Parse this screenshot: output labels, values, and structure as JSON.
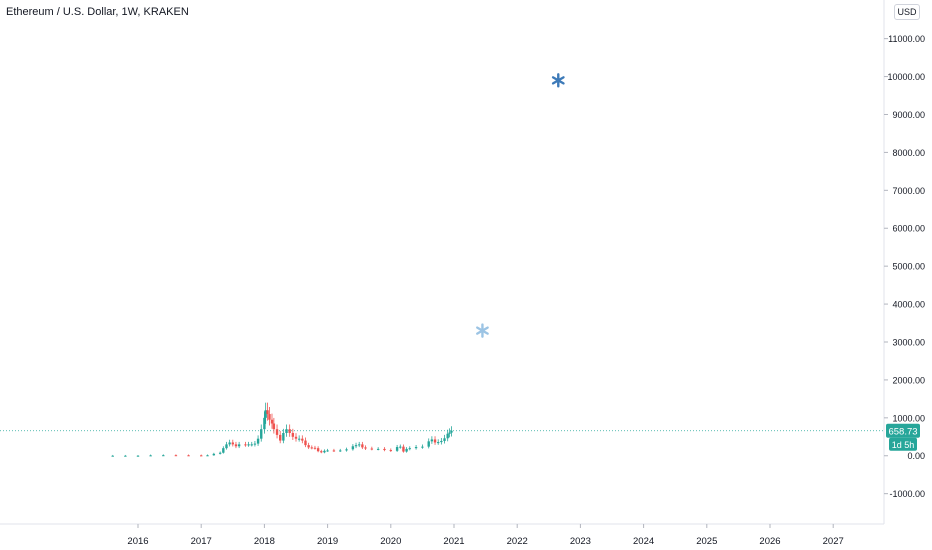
{
  "header": {
    "title": "Ethereum / U.S. Dollar, 1W, KRAKEN",
    "currency_button": "USD"
  },
  "price_badge": {
    "value": "658.73",
    "countdown": "1d 5h"
  },
  "colors": {
    "up": "#26a69a",
    "down": "#ef5350",
    "last_price": "#26a69a",
    "marker_dark": "#3d7ab8",
    "marker_light": "#9cc4e4",
    "axis_text": "#131722"
  },
  "chart_data": {
    "type": "candlestick",
    "title": "Ethereum / U.S. Dollar, 1W, KRAKEN",
    "xlabel": "",
    "ylabel": "",
    "x_ticks": [
      "2016",
      "2017",
      "2018",
      "2019",
      "2020",
      "2021",
      "2022",
      "2023",
      "2024",
      "2025",
      "2026",
      "2027"
    ],
    "y_ticks": [
      "11000.00",
      "10000.00",
      "9000.00",
      "8000.00",
      "7000.00",
      "6000.00",
      "5000.00",
      "4000.00",
      "3000.00",
      "2000.00",
      "1000.00",
      "0.00",
      "-1000.00"
    ],
    "ylim": [
      -1800,
      11650
    ],
    "xlim": [
      2015.0,
      2028.0
    ],
    "grid": false,
    "last_price": 658.73,
    "series": [
      {
        "type": "candlestick",
        "points": [
          {
            "date": 2015.6,
            "value": 1
          },
          {
            "date": 2015.8,
            "value": 1
          },
          {
            "date": 2016.0,
            "value": 1
          },
          {
            "date": 2016.2,
            "value": 10
          },
          {
            "date": 2016.4,
            "value": 14
          },
          {
            "date": 2016.6,
            "value": 12
          },
          {
            "date": 2016.8,
            "value": 10
          },
          {
            "date": 2017.0,
            "value": 9
          },
          {
            "date": 2017.1,
            "value": 12
          },
          {
            "date": 2017.2,
            "value": 50
          },
          {
            "date": 2017.3,
            "value": 80
          },
          {
            "date": 2017.35,
            "value": 200
          },
          {
            "date": 2017.4,
            "value": 300
          },
          {
            "date": 2017.45,
            "value": 350
          },
          {
            "date": 2017.5,
            "value": 300
          },
          {
            "date": 2017.55,
            "value": 250
          },
          {
            "date": 2017.6,
            "value": 300
          },
          {
            "date": 2017.7,
            "value": 290
          },
          {
            "date": 2017.75,
            "value": 300
          },
          {
            "date": 2017.8,
            "value": 300
          },
          {
            "date": 2017.85,
            "value": 320
          },
          {
            "date": 2017.9,
            "value": 450
          },
          {
            "date": 2017.95,
            "value": 700
          },
          {
            "date": 2018.0,
            "value": 1000
          },
          {
            "date": 2018.02,
            "value": 1200
          },
          {
            "date": 2018.05,
            "value": 1100
          },
          {
            "date": 2018.08,
            "value": 950
          },
          {
            "date": 2018.12,
            "value": 850
          },
          {
            "date": 2018.15,
            "value": 700
          },
          {
            "date": 2018.2,
            "value": 550
          },
          {
            "date": 2018.25,
            "value": 400
          },
          {
            "date": 2018.3,
            "value": 600
          },
          {
            "date": 2018.35,
            "value": 700
          },
          {
            "date": 2018.4,
            "value": 600
          },
          {
            "date": 2018.45,
            "value": 500
          },
          {
            "date": 2018.5,
            "value": 450
          },
          {
            "date": 2018.55,
            "value": 450
          },
          {
            "date": 2018.6,
            "value": 400
          },
          {
            "date": 2018.65,
            "value": 280
          },
          {
            "date": 2018.7,
            "value": 220
          },
          {
            "date": 2018.75,
            "value": 210
          },
          {
            "date": 2018.8,
            "value": 200
          },
          {
            "date": 2018.85,
            "value": 120
          },
          {
            "date": 2018.9,
            "value": 90
          },
          {
            "date": 2018.95,
            "value": 130
          },
          {
            "date": 2019.0,
            "value": 140
          },
          {
            "date": 2019.1,
            "value": 130
          },
          {
            "date": 2019.2,
            "value": 140
          },
          {
            "date": 2019.3,
            "value": 170
          },
          {
            "date": 2019.4,
            "value": 250
          },
          {
            "date": 2019.45,
            "value": 280
          },
          {
            "date": 2019.5,
            "value": 300
          },
          {
            "date": 2019.55,
            "value": 220
          },
          {
            "date": 2019.6,
            "value": 190
          },
          {
            "date": 2019.7,
            "value": 180
          },
          {
            "date": 2019.8,
            "value": 180
          },
          {
            "date": 2019.9,
            "value": 150
          },
          {
            "date": 2020.0,
            "value": 130
          },
          {
            "date": 2020.1,
            "value": 230
          },
          {
            "date": 2020.15,
            "value": 240
          },
          {
            "date": 2020.2,
            "value": 110
          },
          {
            "date": 2020.25,
            "value": 180
          },
          {
            "date": 2020.3,
            "value": 200
          },
          {
            "date": 2020.4,
            "value": 230
          },
          {
            "date": 2020.5,
            "value": 240
          },
          {
            "date": 2020.6,
            "value": 380
          },
          {
            "date": 2020.65,
            "value": 430
          },
          {
            "date": 2020.7,
            "value": 350
          },
          {
            "date": 2020.75,
            "value": 360
          },
          {
            "date": 2020.8,
            "value": 390
          },
          {
            "date": 2020.85,
            "value": 460
          },
          {
            "date": 2020.9,
            "value": 580
          },
          {
            "date": 2020.93,
            "value": 610
          },
          {
            "date": 2020.96,
            "value": 658.73
          }
        ]
      },
      {
        "type": "marker",
        "points": [
          {
            "date": 2022.65,
            "value": 9900,
            "shade": "dark"
          },
          {
            "date": 2021.45,
            "value": 3300,
            "shade": "light"
          }
        ]
      }
    ]
  }
}
